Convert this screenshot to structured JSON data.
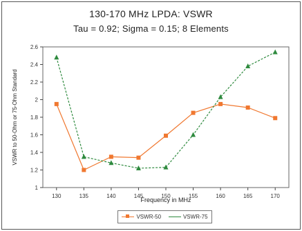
{
  "chart_data": {
    "type": "line",
    "title": "130-170 MHz LPDA: VSWR",
    "subtitle": "Tau = 0.92; Sigma = 0.15; 8 Elements",
    "xlabel": "Frequency in MHz",
    "ylabel": "VSWR to 50-Ohm or 75-Ohm Standard",
    "categories": [
      "130",
      "135",
      "140",
      "145",
      "150",
      "155",
      "160",
      "165",
      "170"
    ],
    "y_ticks": [
      "1",
      "1.2",
      "1.4",
      "1.6",
      "1.8",
      "2",
      "2.2",
      "2.4",
      "2.6"
    ],
    "ylim": [
      1,
      2.6
    ],
    "grid": false,
    "legend_position": "bottom",
    "series": [
      {
        "name": "VSWR-50",
        "color": "#f07830",
        "marker": "square",
        "values": [
          1.95,
          1.2,
          1.35,
          1.34,
          1.59,
          1.85,
          1.95,
          1.91,
          1.79
        ]
      },
      {
        "name": "VSWR-75",
        "color": "#2e8a3e",
        "marker": "triangle",
        "values": [
          2.48,
          1.35,
          1.28,
          1.22,
          1.23,
          1.6,
          2.03,
          2.38,
          2.54
        ]
      }
    ]
  }
}
